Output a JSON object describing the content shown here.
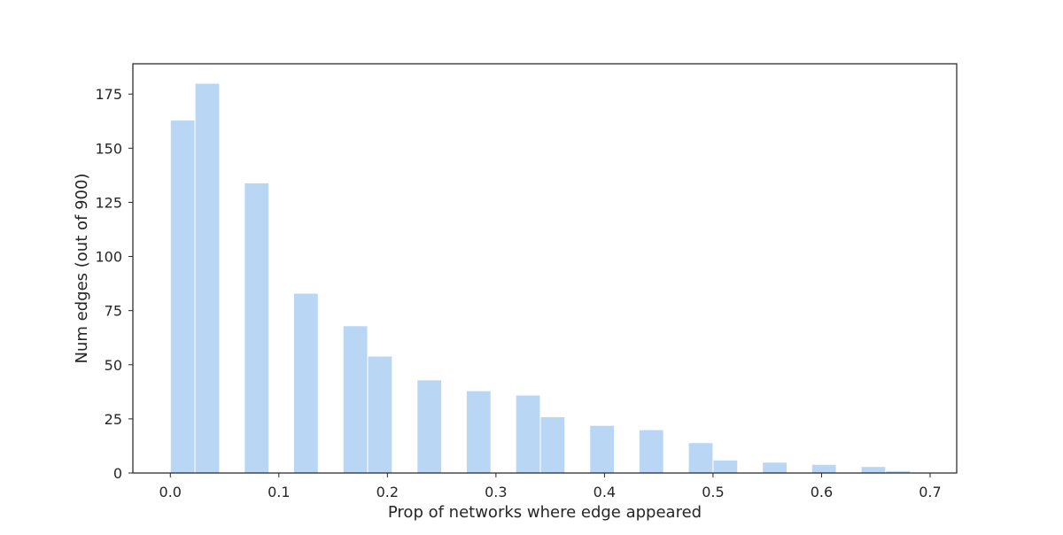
{
  "chart_data": {
    "type": "bar",
    "title": "",
    "xlabel": "Prop of networks where edge appeared",
    "ylabel": "Num edges (out of 900)",
    "xlim": [
      -0.0345,
      0.7245
    ],
    "ylim": [
      0,
      189
    ],
    "xticks": [
      "0.0",
      "0.1",
      "0.2",
      "0.3",
      "0.4",
      "0.5",
      "0.6",
      "0.7"
    ],
    "yticks": [
      "0",
      "25",
      "50",
      "75",
      "100",
      "125",
      "150",
      "175"
    ],
    "bin_width": 0.0227,
    "bins": [
      {
        "x": 0.0,
        "value": 163
      },
      {
        "x": 0.0227,
        "value": 180
      },
      {
        "x": 0.0682,
        "value": 134
      },
      {
        "x": 0.1136,
        "value": 83
      },
      {
        "x": 0.1591,
        "value": 68
      },
      {
        "x": 0.1818,
        "value": 54
      },
      {
        "x": 0.2273,
        "value": 43
      },
      {
        "x": 0.2727,
        "value": 38
      },
      {
        "x": 0.3182,
        "value": 36
      },
      {
        "x": 0.3409,
        "value": 26
      },
      {
        "x": 0.3864,
        "value": 22
      },
      {
        "x": 0.4318,
        "value": 20
      },
      {
        "x": 0.4773,
        "value": 14
      },
      {
        "x": 0.5,
        "value": 6
      },
      {
        "x": 0.5455,
        "value": 5
      },
      {
        "x": 0.5909,
        "value": 4
      },
      {
        "x": 0.6364,
        "value": 3
      },
      {
        "x": 0.6591,
        "value": 1
      }
    ],
    "grid": false,
    "legend": "none",
    "colors": {
      "bar": "#b9d7f4",
      "bar_edge": "#ffffff",
      "axes": "#262626",
      "text": "#262626"
    }
  }
}
